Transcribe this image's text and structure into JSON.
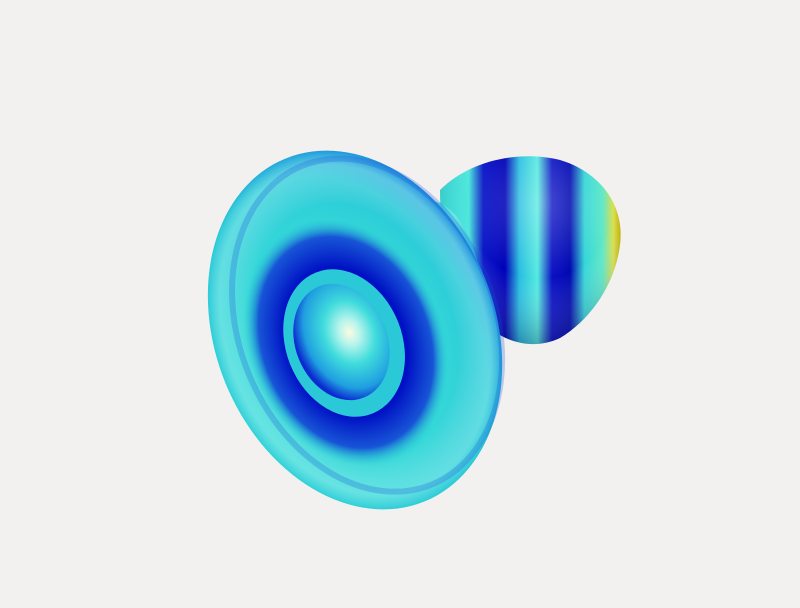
{
  "scene": {
    "background": "#f2f1ef",
    "object": "3d-rendered-surface",
    "colormap": [
      "#0000c8",
      "#1a4fe0",
      "#33d6d6",
      "#f0f060",
      "#c8b400"
    ]
  }
}
